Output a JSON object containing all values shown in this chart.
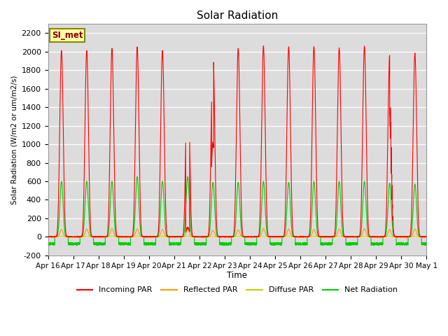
{
  "title": "Solar Radiation",
  "ylabel": "Solar Radiation (W/m2 or um/m2/s)",
  "xlabel": "Time",
  "annotation": "SI_met",
  "ylim": [
    -200,
    2300
  ],
  "yticks": [
    -200,
    0,
    200,
    400,
    600,
    800,
    1000,
    1200,
    1400,
    1600,
    1800,
    2000,
    2200
  ],
  "bg_color": "#dcdcdc",
  "line_colors": {
    "incoming": "#ff0000",
    "reflected": "#ff9900",
    "diffuse": "#cccc00",
    "net": "#00cc00"
  },
  "legend_labels": [
    "Incoming PAR",
    "Reflected PAR",
    "Diffuse PAR",
    "Net Radiation"
  ],
  "x_tick_labels": [
    "Apr 16",
    "Apr 17",
    "Apr 18",
    "Apr 19",
    "Apr 20",
    "Apr 21",
    "Apr 22",
    "Apr 23",
    "Apr 24",
    "Apr 25",
    "Apr 26",
    "Apr 27",
    "Apr 28",
    "Apr 29",
    "Apr 30",
    "May 1"
  ],
  "n_days": 15,
  "points_per_day": 288,
  "day_peaks_incoming": [
    2010,
    2010,
    2030,
    2050,
    2010,
    2050,
    2040,
    2030,
    2060,
    2050,
    2050,
    2040,
    2060,
    1960,
    1980
  ],
  "day_peaks_net": [
    600,
    600,
    600,
    650,
    600,
    650,
    590,
    590,
    600,
    590,
    600,
    600,
    600,
    580,
    570
  ],
  "day_peaks_reflected": [
    80,
    85,
    90,
    85,
    80,
    85,
    70,
    75,
    90,
    85,
    80,
    85,
    90,
    80,
    85
  ],
  "night_net": -70,
  "sharpness": 6
}
